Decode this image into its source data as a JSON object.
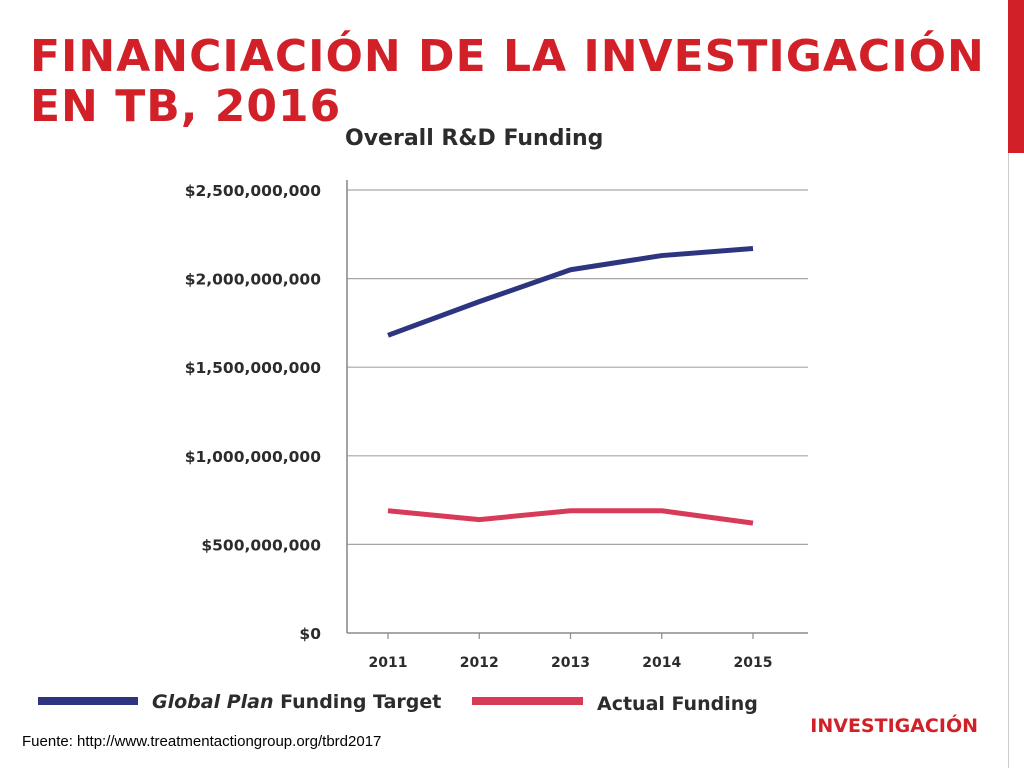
{
  "slide": {
    "title": "FINANCIACIÓN DE LA INVESTIGACIÓN EN TB, 2016",
    "source": "Fuente: http://www.treatmentactiongroup.org/tbrd2017",
    "section_label": "INVESTIGACIÓN",
    "accent_color": "#d12027"
  },
  "chart_data": {
    "type": "line",
    "title": "Overall R&D Funding",
    "categories": [
      "2011",
      "2012",
      "2013",
      "2014",
      "2015"
    ],
    "y_tick_labels": [
      "$0",
      "$500,000,000",
      "$1,000,000,000",
      "$1,500,000,000",
      "$2,000,000,000",
      "$2,500,000,000"
    ],
    "ylim": [
      0,
      2500000000
    ],
    "grid": true,
    "legend_position": "bottom",
    "series": [
      {
        "name_italic": "Global Plan",
        "name_rest": " Funding Target",
        "color": "#2e3580",
        "values": [
          1680000000,
          1870000000,
          2050000000,
          2130000000,
          2170000000
        ]
      },
      {
        "name": "Actual Funding",
        "color": "#d83a5a",
        "values": [
          690000000,
          640000000,
          690000000,
          690000000,
          620000000
        ]
      }
    ]
  }
}
